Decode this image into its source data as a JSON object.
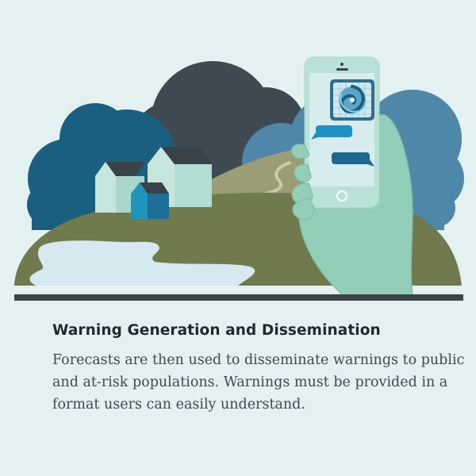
{
  "illustration": {
    "colors": {
      "background": "#e4f1f1",
      "cloud_dark": "#3e4a52",
      "cloud_teal": "#1a5f80",
      "cloud_light_blue": "#4f87a8",
      "hill_olive": "#717a4c",
      "hill_back": "#9b9d74",
      "water": "#d6e8f0",
      "ground_line": "#3b4448",
      "house_mint": "#c6e6dd",
      "house_roof": "#3a4248",
      "house_blue": "#1f95be",
      "hand": "#93cfb8",
      "phone_body": "#b8e2d7",
      "phone_screen": "#d7ecec",
      "chat_bubble_light": "#2190c2",
      "chat_bubble_dark": "#1d6891"
    },
    "icons": {
      "radar": "hurricane-radar-icon",
      "home_button": "phone-home-button-icon"
    }
  },
  "caption": {
    "title": "Warning Generation and Dissemination",
    "body": "Forecasts are then used to disseminate warnings to public and at-risk populations.  Warnings must be provided in a format users can easily understand."
  }
}
